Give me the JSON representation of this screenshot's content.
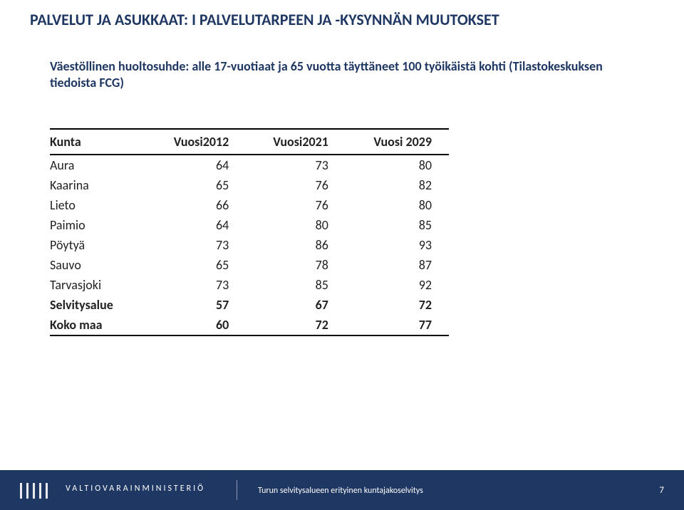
{
  "title": "PALVELUT JA ASUKKAAT: I PALVELUTARPEEN JA -KYSYNNÄN MUUTOKSET",
  "subtitle": "Väestöllinen huoltosuhde: alle 17-vuotiaat ja 65 vuotta täyttäneet 100 työikäistä kohti (Tilastokeskuksen tiedoista FCG)",
  "table": {
    "columns": [
      "Kunta",
      "Vuosi2012",
      "Vuosi2021",
      "Vuosi 2029"
    ],
    "rows": [
      {
        "label": "Aura",
        "v2012": 64,
        "v2021": 73,
        "v2029": 80,
        "bold": false
      },
      {
        "label": "Kaarina",
        "v2012": 65,
        "v2021": 76,
        "v2029": 82,
        "bold": false
      },
      {
        "label": "Lieto",
        "v2012": 66,
        "v2021": 76,
        "v2029": 80,
        "bold": false
      },
      {
        "label": "Paimio",
        "v2012": 64,
        "v2021": 80,
        "v2029": 85,
        "bold": false
      },
      {
        "label": "Pöytyä",
        "v2012": 73,
        "v2021": 86,
        "v2029": 93,
        "bold": false
      },
      {
        "label": "Sauvo",
        "v2012": 65,
        "v2021": 78,
        "v2029": 87,
        "bold": false
      },
      {
        "label": "Tarvasjoki",
        "v2012": 73,
        "v2021": 85,
        "v2029": 92,
        "bold": false
      },
      {
        "label": "Selvitysalue",
        "v2012": 57,
        "v2021": 67,
        "v2029": 72,
        "bold": true
      },
      {
        "label": "Koko maa",
        "v2012": 60,
        "v2021": 72,
        "v2029": 77,
        "bold": true
      }
    ]
  },
  "footer": {
    "ministry": "VALTIOVARAINMINISTERIÖ",
    "caption": "Turun selvitysalueen erityinen kuntajakoselvitys",
    "page": "7"
  }
}
